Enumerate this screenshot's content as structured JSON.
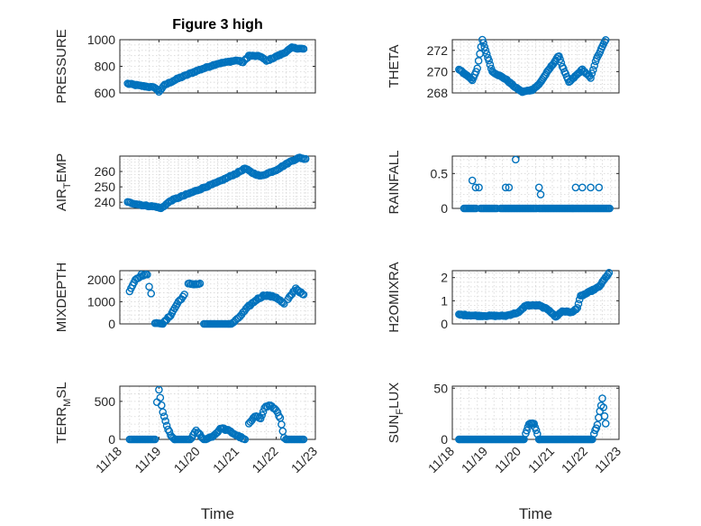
{
  "figure": {
    "title": "Figure 3 high",
    "x_axis_label": "Time"
  },
  "colors": {
    "series": "#0072bd",
    "axes": "#262626",
    "grid": "#d6d6d6"
  },
  "chart_data": [
    {
      "type": "scatter",
      "ylabel": "PRESSURE",
      "title": "Figure 3 high",
      "xlim": [
        0,
        5
      ],
      "ylim": [
        600,
        1000
      ],
      "yticks": [
        600,
        800,
        1000
      ],
      "ytick_labels": [
        "600",
        "800",
        "1000"
      ],
      "xticks": [
        0,
        1,
        2,
        3,
        4,
        5
      ],
      "xtick_labels": [
        "11/18",
        "11/19",
        "11/20",
        "11/21",
        "11/22",
        "11/23"
      ],
      "grid": true,
      "knots": [
        [
          0.2,
          670
        ],
        [
          0.5,
          655
        ],
        [
          0.9,
          640
        ],
        [
          1.0,
          610
        ],
        [
          1.15,
          660
        ],
        [
          1.5,
          710
        ],
        [
          2.0,
          770
        ],
        [
          2.5,
          820
        ],
        [
          3.0,
          845
        ],
        [
          3.15,
          830
        ],
        [
          3.3,
          880
        ],
        [
          3.6,
          875
        ],
        [
          3.75,
          840
        ],
        [
          3.9,
          860
        ],
        [
          4.2,
          900
        ],
        [
          4.4,
          940
        ],
        [
          4.7,
          930
        ]
      ]
    },
    {
      "type": "scatter",
      "ylabel": "THETA",
      "xlim": [
        0,
        5
      ],
      "ylim": [
        268,
        273
      ],
      "yticks": [
        268,
        270,
        272
      ],
      "ytick_labels": [
        "268",
        "270",
        "272"
      ],
      "xticks": [
        0,
        1,
        2,
        3,
        4,
        5
      ],
      "xtick_labels": [
        "11/18",
        "11/19",
        "11/20",
        "11/21",
        "11/22",
        "11/23"
      ],
      "grid": true,
      "knots": [
        [
          0.2,
          270.2
        ],
        [
          0.5,
          269.5
        ],
        [
          0.6,
          269.2
        ],
        [
          0.75,
          270.3
        ],
        [
          0.9,
          273.0
        ],
        [
          1.2,
          270.0
        ],
        [
          1.6,
          269.3
        ],
        [
          1.9,
          268.5
        ],
        [
          2.1,
          268.1
        ],
        [
          2.4,
          268.3
        ],
        [
          2.6,
          268.8
        ],
        [
          2.9,
          270.2
        ],
        [
          3.2,
          271.5
        ],
        [
          3.3,
          270.5
        ],
        [
          3.5,
          269.0
        ],
        [
          3.9,
          270.2
        ],
        [
          4.15,
          269.4
        ],
        [
          4.3,
          271.0
        ],
        [
          4.6,
          273.0
        ]
      ]
    },
    {
      "type": "scatter",
      "ylabel": "AIR_TEMP",
      "xlim": [
        0,
        5
      ],
      "ylim": [
        236,
        270
      ],
      "yticks": [
        240,
        250,
        260
      ],
      "ytick_labels": [
        "240",
        "250",
        "260"
      ],
      "xticks": [
        0,
        1,
        2,
        3,
        4,
        5
      ],
      "xtick_labels": [
        "11/18",
        "11/19",
        "11/20",
        "11/21",
        "11/22",
        "11/23"
      ],
      "grid": true,
      "knots": [
        [
          0.2,
          240
        ],
        [
          0.6,
          238
        ],
        [
          0.95,
          237
        ],
        [
          1.05,
          236
        ],
        [
          1.3,
          241
        ],
        [
          1.8,
          246
        ],
        [
          2.5,
          253
        ],
        [
          3.0,
          259
        ],
        [
          3.2,
          262
        ],
        [
          3.4,
          259
        ],
        [
          3.6,
          257
        ],
        [
          4.0,
          261
        ],
        [
          4.4,
          267
        ],
        [
          4.6,
          269
        ],
        [
          4.75,
          268
        ]
      ]
    },
    {
      "type": "scatter",
      "ylabel": "RAINFALL",
      "xlim": [
        0,
        5
      ],
      "ylim": [
        0,
        0.75
      ],
      "yticks": [
        0,
        0.5
      ],
      "ytick_labels": [
        "0",
        "0.5"
      ],
      "xticks": [
        0,
        1,
        2,
        3,
        4,
        5
      ],
      "xtick_labels": [
        "11/18",
        "11/19",
        "11/20",
        "11/21",
        "11/22",
        "11/23"
      ],
      "grid": true,
      "baseline_segments": [
        [
          0.35,
          0.75
        ],
        [
          0.85,
          1.35
        ],
        [
          1.45,
          2.55
        ],
        [
          2.6,
          4.75
        ]
      ],
      "points": [
        [
          0.6,
          0.4
        ],
        [
          0.7,
          0.3
        ],
        [
          0.8,
          0.3
        ],
        [
          1.6,
          0.3
        ],
        [
          1.7,
          0.3
        ],
        [
          1.9,
          0.7
        ],
        [
          2.6,
          0.3
        ],
        [
          2.65,
          0.2
        ],
        [
          3.7,
          0.3
        ],
        [
          3.9,
          0.3
        ],
        [
          4.15,
          0.3
        ],
        [
          4.4,
          0.3
        ]
      ]
    },
    {
      "type": "scatter",
      "ylabel": "MIXDEPTH",
      "xlim": [
        0,
        5
      ],
      "ylim": [
        0,
        2400
      ],
      "yticks": [
        0,
        1000,
        2000
      ],
      "ytick_labels": [
        "0",
        "1000",
        "2000"
      ],
      "xticks": [
        0,
        1,
        2,
        3,
        4,
        5
      ],
      "xtick_labels": [
        "11/18",
        "11/19",
        "11/20",
        "11/21",
        "11/22",
        "11/23"
      ],
      "grid": true,
      "segments": [
        [
          [
            0.25,
            1500
          ],
          [
            0.4,
            2000
          ],
          [
            0.55,
            2200
          ],
          [
            0.7,
            2200
          ]
        ],
        [
          [
            0.75,
            1700
          ],
          [
            0.8,
            1400
          ]
        ],
        [
          [
            0.9,
            50
          ],
          [
            1.1,
            0
          ],
          [
            1.3,
            400
          ],
          [
            1.5,
            1000
          ],
          [
            1.65,
            1300
          ]
        ],
        [
          [
            1.75,
            1800
          ],
          [
            1.9,
            1800
          ],
          [
            2.05,
            1800
          ]
        ],
        [
          [
            2.15,
            0
          ],
          [
            2.5,
            0
          ],
          [
            2.85,
            0
          ],
          [
            3.0,
            200
          ],
          [
            3.15,
            500
          ],
          [
            3.3,
            800
          ],
          [
            3.5,
            1100
          ],
          [
            3.7,
            1300
          ],
          [
            4.0,
            1200
          ],
          [
            4.2,
            900
          ]
        ],
        [
          [
            4.3,
            1100
          ],
          [
            4.5,
            1600
          ],
          [
            4.7,
            1300
          ]
        ]
      ]
    },
    {
      "type": "scatter",
      "ylabel": "H2OMIXRA",
      "xlim": [
        0,
        5
      ],
      "ylim": [
        0,
        2.3
      ],
      "yticks": [
        0,
        1,
        2
      ],
      "ytick_labels": [
        "0",
        "1",
        "2"
      ],
      "xticks": [
        0,
        1,
        2,
        3,
        4,
        5
      ],
      "xtick_labels": [
        "11/18",
        "11/19",
        "11/20",
        "11/21",
        "11/22",
        "11/23"
      ],
      "grid": true,
      "knots": [
        [
          0.2,
          0.4
        ],
        [
          0.8,
          0.35
        ],
        [
          1.6,
          0.35
        ],
        [
          2.0,
          0.5
        ],
        [
          2.2,
          0.8
        ],
        [
          2.6,
          0.8
        ],
        [
          2.9,
          0.6
        ],
        [
          3.1,
          0.3
        ],
        [
          3.3,
          0.55
        ],
        [
          3.6,
          0.5
        ],
        [
          3.75,
          0.7
        ],
        [
          3.85,
          1.2
        ],
        [
          4.0,
          1.3
        ],
        [
          4.4,
          1.6
        ],
        [
          4.7,
          2.2
        ]
      ]
    },
    {
      "type": "scatter",
      "ylabel": "TERR_MSL",
      "xlim": [
        0,
        5
      ],
      "ylim": [
        0,
        700
      ],
      "yticks": [
        0,
        500
      ],
      "ytick_labels": [
        "0",
        "500"
      ],
      "xticks": [
        0,
        1,
        2,
        3,
        4,
        5
      ],
      "xtick_labels": [
        "11/18",
        "11/19",
        "11/20",
        "11/21",
        "11/22",
        "11/23"
      ],
      "grid": true,
      "segments": [
        [
          [
            0.25,
            0
          ],
          [
            0.9,
            0
          ]
        ],
        [
          [
            0.95,
            480
          ],
          [
            1.0,
            650
          ],
          [
            1.1,
            350
          ],
          [
            1.2,
            180
          ],
          [
            1.3,
            50
          ],
          [
            1.4,
            0
          ]
        ],
        [
          [
            1.4,
            0
          ],
          [
            1.8,
            0
          ],
          [
            1.95,
            110
          ],
          [
            2.05,
            60
          ],
          [
            2.15,
            0
          ]
        ],
        [
          [
            2.2,
            0
          ],
          [
            2.4,
            50
          ],
          [
            2.6,
            150
          ],
          [
            2.8,
            110
          ],
          [
            3.0,
            50
          ],
          [
            3.2,
            0
          ]
        ],
        [
          [
            3.3,
            200
          ],
          [
            3.45,
            300
          ],
          [
            3.6,
            280
          ],
          [
            3.7,
            420
          ],
          [
            3.85,
            450
          ],
          [
            4.0,
            380
          ],
          [
            4.1,
            280
          ],
          [
            4.2,
            30
          ]
        ],
        [
          [
            4.25,
            0
          ],
          [
            4.7,
            0
          ]
        ]
      ]
    },
    {
      "type": "scatter",
      "ylabel": "SUN_FLUX",
      "xlim": [
        0,
        5
      ],
      "ylim": [
        0,
        52
      ],
      "yticks": [
        0,
        50
      ],
      "ytick_labels": [
        "0",
        "50"
      ],
      "xticks": [
        0,
        1,
        2,
        3,
        4,
        5
      ],
      "xtick_labels": [
        "11/18",
        "11/19",
        "11/20",
        "11/21",
        "11/22",
        "11/23"
      ],
      "grid": true,
      "segments": [
        [
          [
            0.2,
            0
          ],
          [
            2.15,
            0
          ]
        ],
        [
          [
            2.2,
            5
          ],
          [
            2.3,
            15
          ],
          [
            2.45,
            15
          ],
          [
            2.55,
            5
          ],
          [
            2.6,
            0
          ]
        ],
        [
          [
            2.6,
            0
          ],
          [
            4.2,
            0
          ]
        ],
        [
          [
            4.25,
            5
          ],
          [
            4.35,
            15
          ],
          [
            4.5,
            40
          ],
          [
            4.6,
            15
          ]
        ]
      ]
    }
  ]
}
